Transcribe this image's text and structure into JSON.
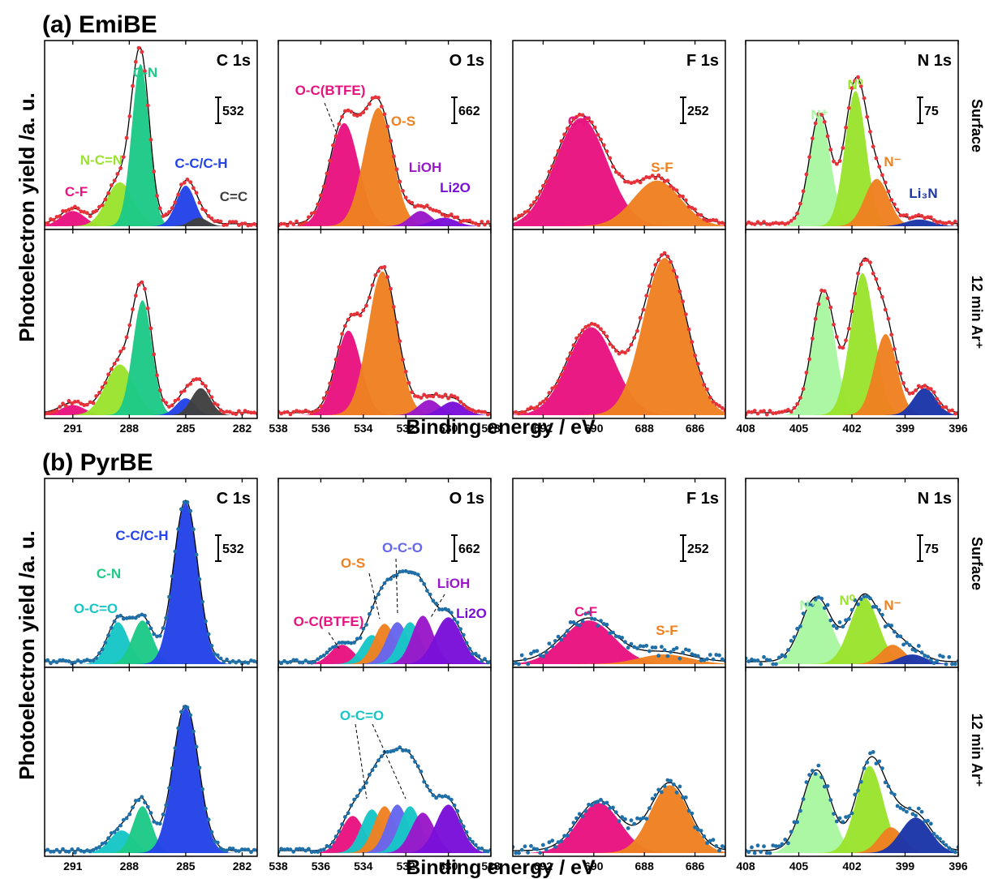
{
  "sections": [
    {
      "id": "a",
      "label": "(a) EmiBE"
    },
    {
      "id": "b",
      "label": "(b) PyrBE"
    }
  ],
  "y_axis_label": "Photoelectron yield /a. u.",
  "x_axis_label": "Binding energy / eV",
  "row_labels": [
    "Surface",
    "12 min Ar⁺"
  ],
  "point_colors": {
    "a": "#e8323a",
    "b": "#1f6fa8"
  },
  "envelope_color": "#000000",
  "chart_data": [
    {
      "type": "area",
      "section": "a",
      "row": 0,
      "col": 0,
      "title": "C 1s",
      "scale_bar": "532",
      "xlim": [
        292.5,
        281.2
      ],
      "ylim": [
        0,
        10.5
      ],
      "xticks": [
        {
          "v": 291,
          "l": "291"
        },
        {
          "v": 288,
          "l": "288"
        },
        {
          "v": 285,
          "l": "285"
        },
        {
          "v": 282,
          "l": "282"
        }
      ],
      "components": [
        {
          "name": "C-F",
          "center": 291.0,
          "height": 0.9,
          "fwhm": 1.5,
          "color": "#e8137f"
        },
        {
          "name": "N-C=N",
          "center": 288.5,
          "height": 2.6,
          "fwhm": 1.7,
          "color": "#9be32e"
        },
        {
          "name": "C-N",
          "center": 287.4,
          "height": 9.6,
          "fwhm": 1.1,
          "color": "#1dc987"
        },
        {
          "name": "C-C/C-H",
          "center": 285.0,
          "height": 2.4,
          "fwhm": 1.2,
          "color": "#2443e8"
        },
        {
          "name": "C=C",
          "center": 284.3,
          "height": 0.5,
          "fwhm": 1.1,
          "color": "#404040"
        }
      ]
    },
    {
      "type": "area",
      "section": "a",
      "row": 0,
      "col": 1,
      "title": "O 1s",
      "scale_bar": "662",
      "xlim": [
        538,
        528
      ],
      "ylim": [
        0,
        10.5
      ],
      "xticks": [
        {
          "v": 538,
          "l": "538"
        },
        {
          "v": 536,
          "l": "536"
        },
        {
          "v": 534,
          "l": "534"
        },
        {
          "v": 532,
          "l": "532"
        },
        {
          "v": 530,
          "l": "530"
        },
        {
          "v": 528,
          "l": "528"
        }
      ],
      "components": [
        {
          "name": "O-C(BTFE)",
          "center": 534.9,
          "height": 6.1,
          "fwhm": 1.6,
          "color": "#e8137f"
        },
        {
          "name": "O-S",
          "center": 533.3,
          "height": 7.0,
          "fwhm": 1.6,
          "color": "#ee8121"
        },
        {
          "name": "LiOH",
          "center": 531.3,
          "height": 0.9,
          "fwhm": 1.2,
          "color": "#9a18c9"
        },
        {
          "name": "Li2O",
          "center": 530.2,
          "height": 0.5,
          "fwhm": 1.4,
          "color": "#7a10d8"
        }
      ]
    },
    {
      "type": "area",
      "section": "a",
      "row": 0,
      "col": 2,
      "title": "F 1s",
      "scale_bar": "252",
      "xlim": [
        693.2,
        684.8
      ],
      "ylim": [
        0,
        10.5
      ],
      "xticks": [
        {
          "v": 692,
          "l": "692"
        },
        {
          "v": 690,
          "l": "690"
        },
        {
          "v": 688,
          "l": "688"
        },
        {
          "v": 686,
          "l": "686"
        }
      ],
      "components": [
        {
          "name": "C-F",
          "center": 690.5,
          "height": 6.4,
          "fwhm": 2.4,
          "color": "#e8137f"
        },
        {
          "name": "S-F",
          "center": 687.5,
          "height": 2.7,
          "fwhm": 2.2,
          "color": "#ee8121"
        }
      ]
    },
    {
      "type": "area",
      "section": "a",
      "row": 0,
      "col": 3,
      "title": "N 1s",
      "scale_bar": "75",
      "xlim": [
        408,
        396
      ],
      "ylim": [
        0,
        10.5
      ],
      "xticks": [
        {
          "v": 408,
          "l": "408"
        },
        {
          "v": 405,
          "l": "405"
        },
        {
          "v": 402,
          "l": "402"
        },
        {
          "v": 399,
          "l": "399"
        },
        {
          "v": 396,
          "l": "396"
        }
      ],
      "components": [
        {
          "name": "N⁺",
          "center": 403.8,
          "height": 6.5,
          "fwhm": 1.4,
          "color": "#a8f7a1"
        },
        {
          "name": "N⁰",
          "center": 401.8,
          "height": 8.0,
          "fwhm": 1.4,
          "color": "#9be32e"
        },
        {
          "name": "N⁻",
          "center": 400.6,
          "height": 2.8,
          "fwhm": 1.6,
          "color": "#ee8121"
        },
        {
          "name": "Li₃N",
          "center": 398.2,
          "height": 0.4,
          "fwhm": 1.8,
          "color": "#1c36a8"
        }
      ]
    },
    {
      "type": "area",
      "section": "a",
      "row": 1,
      "col": 0,
      "title": "",
      "xlim": [
        292.5,
        281.2
      ],
      "ylim": [
        0,
        10.5
      ],
      "xticks": [
        {
          "v": 291,
          "l": "291"
        },
        {
          "v": 288,
          "l": "288"
        },
        {
          "v": 285,
          "l": "285"
        },
        {
          "v": 282,
          "l": "282"
        }
      ],
      "components": [
        {
          "name": "C-F",
          "center": 291.0,
          "height": 0.6,
          "fwhm": 1.5,
          "color": "#e8137f"
        },
        {
          "name": "N-C=N",
          "center": 288.5,
          "height": 3.0,
          "fwhm": 1.8,
          "color": "#9be32e"
        },
        {
          "name": "C-N",
          "center": 287.3,
          "height": 6.8,
          "fwhm": 1.2,
          "color": "#1dc987"
        },
        {
          "name": "C-C/C-H",
          "center": 285.0,
          "height": 1.0,
          "fwhm": 1.2,
          "color": "#2443e8"
        },
        {
          "name": "C=C",
          "center": 284.2,
          "height": 1.6,
          "fwhm": 1.2,
          "color": "#404040"
        }
      ]
    },
    {
      "type": "area",
      "section": "a",
      "row": 1,
      "col": 1,
      "title": "",
      "xlim": [
        538,
        528
      ],
      "ylim": [
        0,
        10.5
      ],
      "xticks": [
        {
          "v": 538,
          "l": "538"
        },
        {
          "v": 536,
          "l": "536"
        },
        {
          "v": 534,
          "l": "534"
        },
        {
          "v": 532,
          "l": "532"
        },
        {
          "v": 530,
          "l": "530"
        },
        {
          "v": 528,
          "l": "528"
        }
      ],
      "components": [
        {
          "name": "O-C(BTFE)",
          "center": 534.7,
          "height": 5.0,
          "fwhm": 1.4,
          "color": "#e8137f"
        },
        {
          "name": "O-S",
          "center": 533.1,
          "height": 8.5,
          "fwhm": 1.6,
          "color": "#ee8121"
        },
        {
          "name": "LiOH",
          "center": 530.9,
          "height": 0.9,
          "fwhm": 1.2,
          "color": "#9a18c9"
        },
        {
          "name": "Li2O",
          "center": 529.8,
          "height": 0.8,
          "fwhm": 1.3,
          "color": "#7a10d8"
        }
      ]
    },
    {
      "type": "area",
      "section": "a",
      "row": 1,
      "col": 2,
      "title": "",
      "xlim": [
        693.2,
        684.8
      ],
      "ylim": [
        0,
        10.5
      ],
      "xticks": [
        {
          "v": 692,
          "l": "692"
        },
        {
          "v": 690,
          "l": "690"
        },
        {
          "v": 688,
          "l": "688"
        },
        {
          "v": 686,
          "l": "686"
        }
      ],
      "components": [
        {
          "name": "C-F",
          "center": 690.1,
          "height": 5.2,
          "fwhm": 2.2,
          "color": "#e8137f"
        },
        {
          "name": "S-F",
          "center": 687.2,
          "height": 9.3,
          "fwhm": 2.0,
          "color": "#ee8121"
        }
      ]
    },
    {
      "type": "area",
      "section": "a",
      "row": 1,
      "col": 3,
      "title": "",
      "xlim": [
        408,
        396
      ],
      "ylim": [
        0,
        10.5
      ],
      "xticks": [
        {
          "v": 408,
          "l": "408"
        },
        {
          "v": 405,
          "l": "405"
        },
        {
          "v": 402,
          "l": "402"
        },
        {
          "v": 399,
          "l": "399"
        },
        {
          "v": 396,
          "l": "396"
        }
      ],
      "components": [
        {
          "name": "N⁺",
          "center": 403.6,
          "height": 7.2,
          "fwhm": 1.5,
          "color": "#a8f7a1"
        },
        {
          "name": "N⁰",
          "center": 401.4,
          "height": 8.4,
          "fwhm": 1.6,
          "color": "#9be32e"
        },
        {
          "name": "N⁻",
          "center": 400.1,
          "height": 4.8,
          "fwhm": 1.5,
          "color": "#ee8121"
        },
        {
          "name": "Li₃N",
          "center": 397.9,
          "height": 1.6,
          "fwhm": 1.5,
          "color": "#1c36a8"
        }
      ]
    },
    {
      "type": "area",
      "section": "b",
      "row": 0,
      "col": 0,
      "title": "C 1s",
      "scale_bar": "532",
      "xlim": [
        292.5,
        281.2
      ],
      "ylim": [
        0,
        11
      ],
      "xticks": [
        {
          "v": 291,
          "l": "291"
        },
        {
          "v": 288,
          "l": "288"
        },
        {
          "v": 285,
          "l": "285"
        },
        {
          "v": 282,
          "l": "282"
        }
      ],
      "components": [
        {
          "name": "O-C=O",
          "center": 288.6,
          "height": 2.6,
          "fwhm": 1.3,
          "color": "#17c6c6"
        },
        {
          "name": "C-N",
          "center": 287.3,
          "height": 2.7,
          "fwhm": 1.3,
          "color": "#1dc987"
        },
        {
          "name": "C-C/C-H",
          "center": 285.0,
          "height": 10.0,
          "fwhm": 1.5,
          "color": "#2443e8"
        }
      ]
    },
    {
      "type": "area",
      "section": "b",
      "row": 0,
      "col": 1,
      "title": "O 1s",
      "scale_bar": "662",
      "xlim": [
        538,
        528
      ],
      "ylim": [
        0,
        11
      ],
      "xticks": [
        {
          "v": 538,
          "l": "538"
        },
        {
          "v": 536,
          "l": "536"
        },
        {
          "v": 534,
          "l": "534"
        },
        {
          "v": 532,
          "l": "532"
        },
        {
          "v": 530,
          "l": "530"
        },
        {
          "v": 528,
          "l": "528"
        }
      ],
      "components": [
        {
          "name": "O-C(BTFE)",
          "center": 535.0,
          "height": 1.2,
          "fwhm": 1.3,
          "color": "#e8137f"
        },
        {
          "name": "O-C=O",
          "center": 533.6,
          "height": 1.8,
          "fwhm": 1.2,
          "color": "#17c6c6"
        },
        {
          "name": "O-S",
          "center": 533.0,
          "height": 2.5,
          "fwhm": 1.2,
          "color": "#ee8121"
        },
        {
          "name": "O-C-O",
          "center": 532.4,
          "height": 2.6,
          "fwhm": 1.2,
          "color": "#6666ee"
        },
        {
          "name": "",
          "center": 531.8,
          "height": 2.6,
          "fwhm": 1.2,
          "color": "#17c6c6"
        },
        {
          "name": "LiOH",
          "center": 531.2,
          "height": 3.0,
          "fwhm": 1.2,
          "color": "#9a18c9"
        },
        {
          "name": "Li2O",
          "center": 530.0,
          "height": 2.9,
          "fwhm": 1.5,
          "color": "#7a10d8"
        }
      ]
    },
    {
      "type": "area",
      "section": "b",
      "row": 0,
      "col": 2,
      "title": "F 1s",
      "scale_bar": "252",
      "xlim": [
        693.2,
        684.8
      ],
      "ylim": [
        0,
        11
      ],
      "xticks": [
        {
          "v": 692,
          "l": "692"
        },
        {
          "v": 690,
          "l": "690"
        },
        {
          "v": 688,
          "l": "688"
        },
        {
          "v": 686,
          "l": "686"
        }
      ],
      "components": [
        {
          "name": "C-F",
          "center": 690.2,
          "height": 2.7,
          "fwhm": 2.4,
          "color": "#e8137f"
        },
        {
          "name": "S-F",
          "center": 687.2,
          "height": 0.6,
          "fwhm": 2.4,
          "color": "#ee8121"
        }
      ]
    },
    {
      "type": "area",
      "section": "b",
      "row": 0,
      "col": 3,
      "title": "N 1s",
      "scale_bar": "75",
      "xlim": [
        408,
        396
      ],
      "ylim": [
        0,
        11
      ],
      "xticks": [
        {
          "v": 408,
          "l": "408"
        },
        {
          "v": 405,
          "l": "405"
        },
        {
          "v": 402,
          "l": "402"
        },
        {
          "v": 399,
          "l": "399"
        },
        {
          "v": 396,
          "l": "396"
        }
      ],
      "components": [
        {
          "name": "N⁺",
          "center": 404.0,
          "height": 4.0,
          "fwhm": 2.0,
          "color": "#a8f7a1"
        },
        {
          "name": "N⁰",
          "center": 401.3,
          "height": 4.1,
          "fwhm": 1.9,
          "color": "#9be32e"
        },
        {
          "name": "N⁻",
          "center": 399.7,
          "height": 1.2,
          "fwhm": 1.6,
          "color": "#ee8121"
        },
        {
          "name": "",
          "center": 398.6,
          "height": 0.6,
          "fwhm": 1.8,
          "color": "#1c36a8"
        }
      ]
    },
    {
      "type": "area",
      "section": "b",
      "row": 1,
      "col": 0,
      "title": "",
      "xlim": [
        292.5,
        281.2
      ],
      "ylim": [
        0,
        11
      ],
      "xticks": [
        {
          "v": 291,
          "l": "291"
        },
        {
          "v": 288,
          "l": "288"
        },
        {
          "v": 285,
          "l": "285"
        },
        {
          "v": 282,
          "l": "282"
        }
      ],
      "components": [
        {
          "name": "O-C=O",
          "center": 288.4,
          "height": 1.4,
          "fwhm": 1.5,
          "color": "#17c6c6"
        },
        {
          "name": "C-N",
          "center": 287.3,
          "height": 2.9,
          "fwhm": 1.2,
          "color": "#1dc987"
        },
        {
          "name": "C-C/C-H",
          "center": 285.0,
          "height": 9.0,
          "fwhm": 1.6,
          "color": "#2443e8"
        }
      ]
    },
    {
      "type": "area",
      "section": "b",
      "row": 1,
      "col": 1,
      "title": "",
      "xlim": [
        538,
        528
      ],
      "ylim": [
        0,
        11
      ],
      "xticks": [
        {
          "v": 538,
          "l": "538"
        },
        {
          "v": 536,
          "l": "536"
        },
        {
          "v": 534,
          "l": "534"
        },
        {
          "v": 532,
          "l": "532"
        },
        {
          "v": 530,
          "l": "530"
        },
        {
          "v": 528,
          "l": "528"
        }
      ],
      "components": [
        {
          "name": "",
          "center": 534.5,
          "height": 2.3,
          "fwhm": 1.3,
          "color": "#e8137f"
        },
        {
          "name": "O-C=O",
          "center": 533.6,
          "height": 2.7,
          "fwhm": 1.2,
          "color": "#17c6c6"
        },
        {
          "name": "",
          "center": 533.0,
          "height": 2.9,
          "fwhm": 1.2,
          "color": "#ee8121"
        },
        {
          "name": "",
          "center": 532.4,
          "height": 3.0,
          "fwhm": 1.2,
          "color": "#6666ee"
        },
        {
          "name": "",
          "center": 531.8,
          "height": 2.9,
          "fwhm": 1.2,
          "color": "#17c6c6"
        },
        {
          "name": "",
          "center": 531.2,
          "height": 2.5,
          "fwhm": 1.3,
          "color": "#9a18c9"
        },
        {
          "name": "",
          "center": 530.0,
          "height": 3.0,
          "fwhm": 1.4,
          "color": "#7a10d8"
        }
      ]
    },
    {
      "type": "area",
      "section": "b",
      "row": 1,
      "col": 2,
      "title": "",
      "xlim": [
        693.2,
        684.8
      ],
      "ylim": [
        0,
        11
      ],
      "xticks": [
        {
          "v": 692,
          "l": "692"
        },
        {
          "v": 690,
          "l": "690"
        },
        {
          "v": 688,
          "l": "688"
        },
        {
          "v": 686,
          "l": "686"
        }
      ],
      "components": [
        {
          "name": "C-F",
          "center": 689.8,
          "height": 3.1,
          "fwhm": 2.0,
          "color": "#e8137f"
        },
        {
          "name": "S-F",
          "center": 687.0,
          "height": 4.2,
          "fwhm": 1.8,
          "color": "#ee8121"
        }
      ]
    },
    {
      "type": "area",
      "section": "b",
      "row": 1,
      "col": 3,
      "title": "",
      "xlim": [
        408,
        396
      ],
      "ylim": [
        0,
        11
      ],
      "xticks": [
        {
          "v": 408,
          "l": "408"
        },
        {
          "v": 405,
          "l": "405"
        },
        {
          "v": 402,
          "l": "402"
        },
        {
          "v": 399,
          "l": "399"
        },
        {
          "v": 396,
          "l": "396"
        }
      ],
      "components": [
        {
          "name": "N⁺",
          "center": 404.0,
          "height": 5.0,
          "fwhm": 1.9,
          "color": "#a8f7a1"
        },
        {
          "name": "N⁰",
          "center": 401.0,
          "height": 5.4,
          "fwhm": 1.8,
          "color": "#9be32e"
        },
        {
          "name": "",
          "center": 399.8,
          "height": 1.6,
          "fwhm": 1.6,
          "color": "#ee8121"
        },
        {
          "name": "",
          "center": 398.4,
          "height": 2.2,
          "fwhm": 2.0,
          "color": "#1c36a8"
        }
      ]
    }
  ]
}
